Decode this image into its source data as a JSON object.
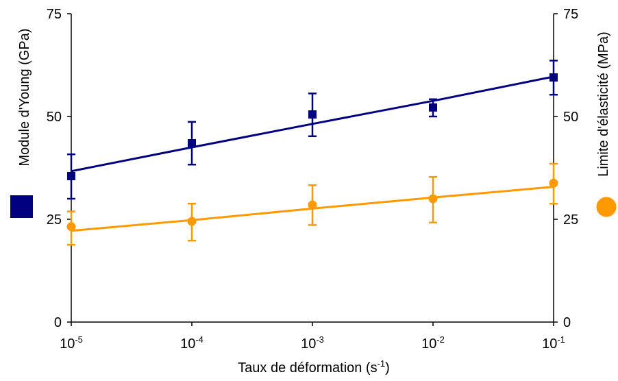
{
  "chart_data": {
    "type": "line",
    "title": "",
    "xlabel": "Taux de déformation (s",
    "xlabel_sup": "-1",
    "xlabel_suffix": ")",
    "ylabel_left": "Module d'Young (GPa)",
    "ylabel_right": "Limite d'élasticité (MPa)",
    "x_scale": "log",
    "x_ticks": [
      {
        "value": 1e-05,
        "base": "10",
        "exp": "-5"
      },
      {
        "value": 0.0001,
        "base": "10",
        "exp": "-4"
      },
      {
        "value": 0.001,
        "base": "10",
        "exp": "-3"
      },
      {
        "value": 0.01,
        "base": "10",
        "exp": "-2"
      },
      {
        "value": 0.1,
        "base": "10",
        "exp": "-1"
      }
    ],
    "y_left_ticks": [
      "0",
      "25",
      "50",
      "75"
    ],
    "y_right_ticks": [
      "0",
      "25",
      "50",
      "75"
    ],
    "ylim": [
      0,
      75
    ],
    "grid": false,
    "series": [
      {
        "marker": "square",
        "color": "#000080",
        "axis": "left",
        "x": [
          1e-05,
          0.0001,
          0.001,
          0.01,
          0.1
        ],
        "y": [
          35.5,
          43.5,
          50.5,
          52.2,
          59.5
        ],
        "err_low": [
          30.0,
          38.3,
          45.2,
          50.0,
          55.3
        ],
        "err_high": [
          40.8,
          48.7,
          55.6,
          54.2,
          63.6
        ],
        "trend": [
          36.7,
          42.5,
          48.2,
          53.8,
          59.7
        ]
      },
      {
        "marker": "circle",
        "color": "#FF9900",
        "axis": "right",
        "x": [
          1e-05,
          0.0001,
          0.001,
          0.01,
          0.1
        ],
        "y": [
          23.2,
          24.5,
          28.5,
          30.0,
          33.8
        ],
        "err_low": [
          18.8,
          19.8,
          23.6,
          24.2,
          28.8
        ],
        "err_high": [
          26.9,
          28.8,
          33.3,
          35.3,
          38.5
        ],
        "trend": [
          22.2,
          24.8,
          27.6,
          30.3,
          32.9
        ]
      }
    ]
  }
}
